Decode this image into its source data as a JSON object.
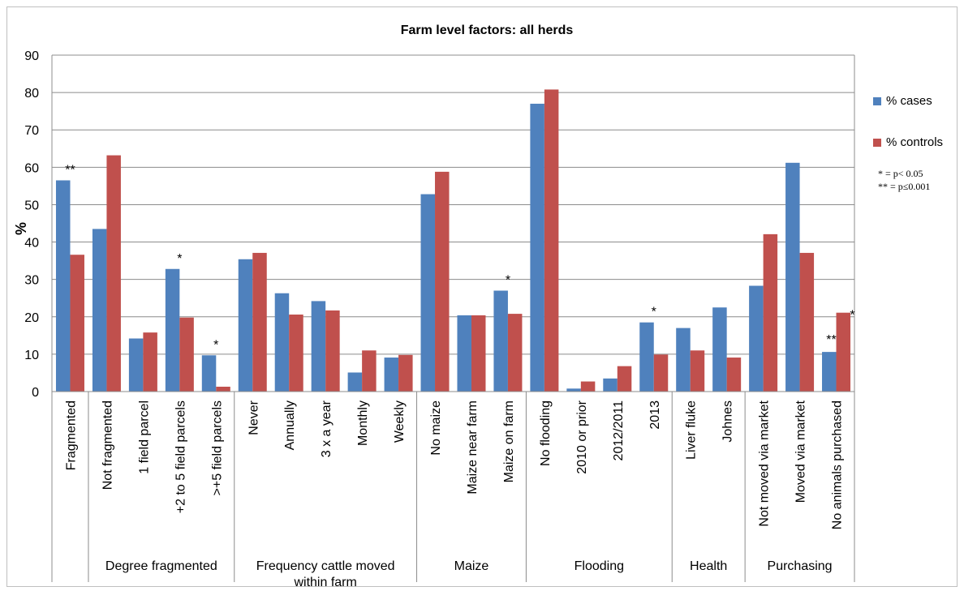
{
  "chart_data": {
    "type": "bar",
    "title": "Farm level factors: all herds",
    "ylabel": "%",
    "ylim": [
      0,
      90
    ],
    "yticks": [
      0,
      10,
      20,
      30,
      40,
      50,
      60,
      70,
      80,
      90
    ],
    "grid": true,
    "legend_placement": "right",
    "categories": [
      "Fragmented",
      "Not fragmented",
      "1 field parcel",
      "+2 to 5 field parcels",
      ">+5 field parcels",
      "Never",
      "Annually",
      "3 x a year",
      "Monthly",
      "Weekly",
      "No maize",
      "Maize near farm",
      "Maize on farm",
      "No flooding",
      "2010 or prior",
      "2012/2011",
      "2013",
      "Liver fluke",
      "Johnes",
      "Not moved via market",
      "Moved via market",
      "No animals purchased"
    ],
    "groups": [
      {
        "label": "",
        "count": 1
      },
      {
        "label": "Degree fragmented",
        "count": 4
      },
      {
        "label": "Frequency  cattle moved within farm",
        "lines": [
          "Frequency  cattle moved",
          "within farm"
        ],
        "count": 5
      },
      {
        "label": "Maize",
        "count": 3
      },
      {
        "label": "Flooding",
        "count": 4
      },
      {
        "label": "Health",
        "count": 2
      },
      {
        "label": "Purchasing",
        "count": 3
      }
    ],
    "series": [
      {
        "name": "% cases",
        "color": "#4f81bd",
        "values": [
          56.5,
          43.5,
          14.2,
          32.8,
          9.7,
          35.4,
          26.3,
          24.2,
          5.1,
          9.1,
          52.8,
          20.4,
          27.0,
          77.0,
          0.8,
          3.5,
          18.5,
          17.0,
          22.5,
          28.3,
          61.2,
          10.6
        ]
      },
      {
        "name": "% controls",
        "color": "#c0504d",
        "values": [
          36.6,
          63.2,
          15.8,
          19.8,
          1.3,
          37.1,
          20.6,
          21.7,
          11.0,
          9.8,
          58.8,
          20.4,
          20.8,
          80.8,
          2.7,
          6.8,
          9.9,
          11.0,
          9.1,
          42.1,
          37.1,
          21.1
        ]
      }
    ],
    "annotations": [
      {
        "index": 0,
        "text": "**"
      },
      {
        "index": 3,
        "text": "*"
      },
      {
        "index": 4,
        "text": "*"
      },
      {
        "index": 12,
        "text": "*"
      },
      {
        "index": 16,
        "text": "*"
      },
      {
        "index": 21,
        "text": "**"
      },
      {
        "index": 21,
        "text": "*"
      }
    ],
    "notes": [
      "* = p< 0.05",
      "** = p≤0.001"
    ]
  }
}
